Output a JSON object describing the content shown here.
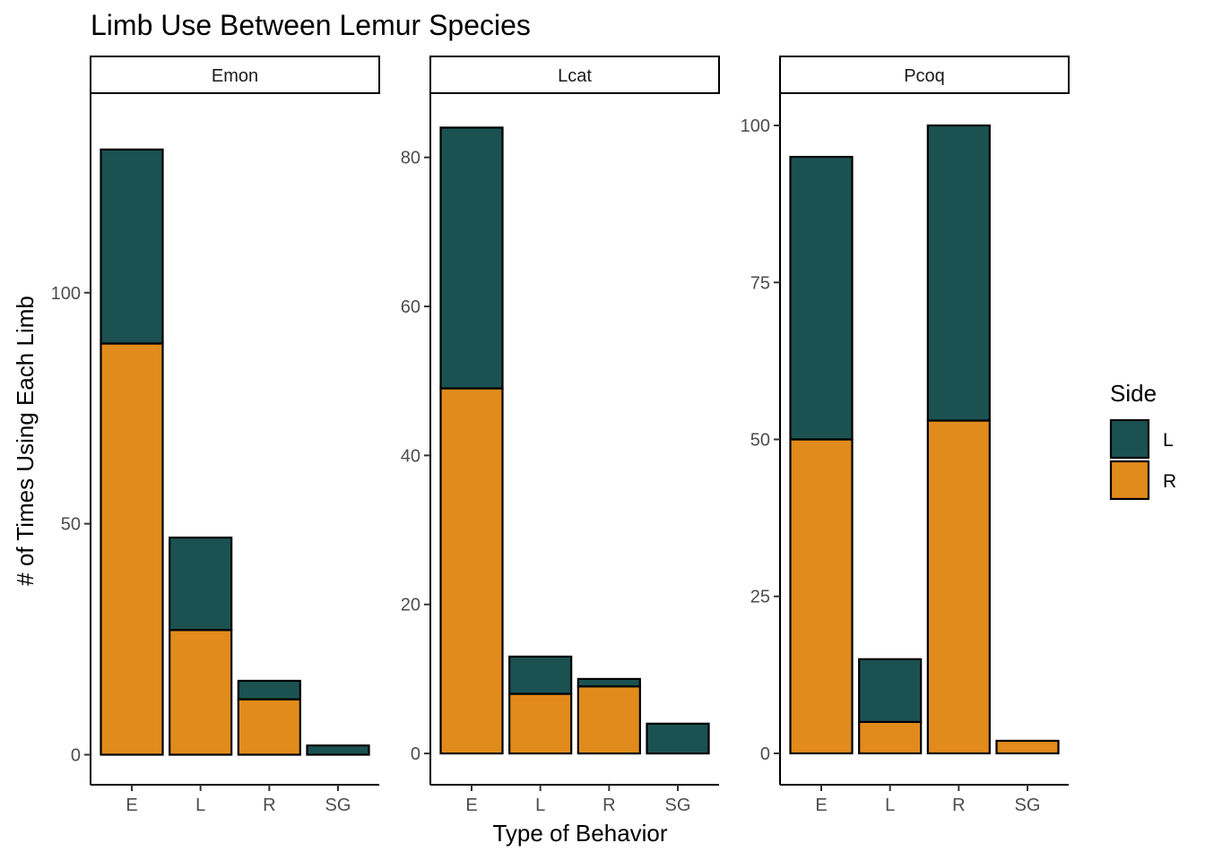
{
  "chart_data": {
    "type": "bar",
    "stacked": true,
    "title": "Limb Use Between Lemur Species",
    "xlabel": "Type of Behavior",
    "ylabel": "# of Times Using Each Limb",
    "categories": [
      "E",
      "L",
      "R",
      "SG"
    ],
    "legend": {
      "title": "Side",
      "placement": "right",
      "entries": [
        {
          "label": "L",
          "color": "#1b5151"
        },
        {
          "label": "R",
          "color": "#e18b1c"
        }
      ]
    },
    "grid": false,
    "panels": [
      {
        "name": "Emon",
        "ylim": [
          -6.5,
          143
        ],
        "yticks": [
          0,
          50,
          100
        ],
        "series": [
          {
            "name": "R",
            "values": [
              89,
              27,
              12,
              0
            ]
          },
          {
            "name": "L",
            "values": [
              42,
              20,
              4,
              2
            ]
          }
        ]
      },
      {
        "name": "Lcat",
        "ylim": [
          -4.2,
          88.5
        ],
        "yticks": [
          0,
          20,
          40,
          60,
          80
        ],
        "series": [
          {
            "name": "R",
            "values": [
              49,
              8,
              9,
              0
            ]
          },
          {
            "name": "L",
            "values": [
              35,
              5,
              1,
              4
            ]
          }
        ]
      },
      {
        "name": "Pcoq",
        "ylim": [
          -5,
          105
        ],
        "yticks": [
          0,
          25,
          50,
          75,
          100
        ],
        "series": [
          {
            "name": "R",
            "values": [
              50,
              5,
              53,
              2
            ]
          },
          {
            "name": "L",
            "values": [
              45,
              10,
              47,
              0
            ]
          }
        ]
      }
    ]
  }
}
